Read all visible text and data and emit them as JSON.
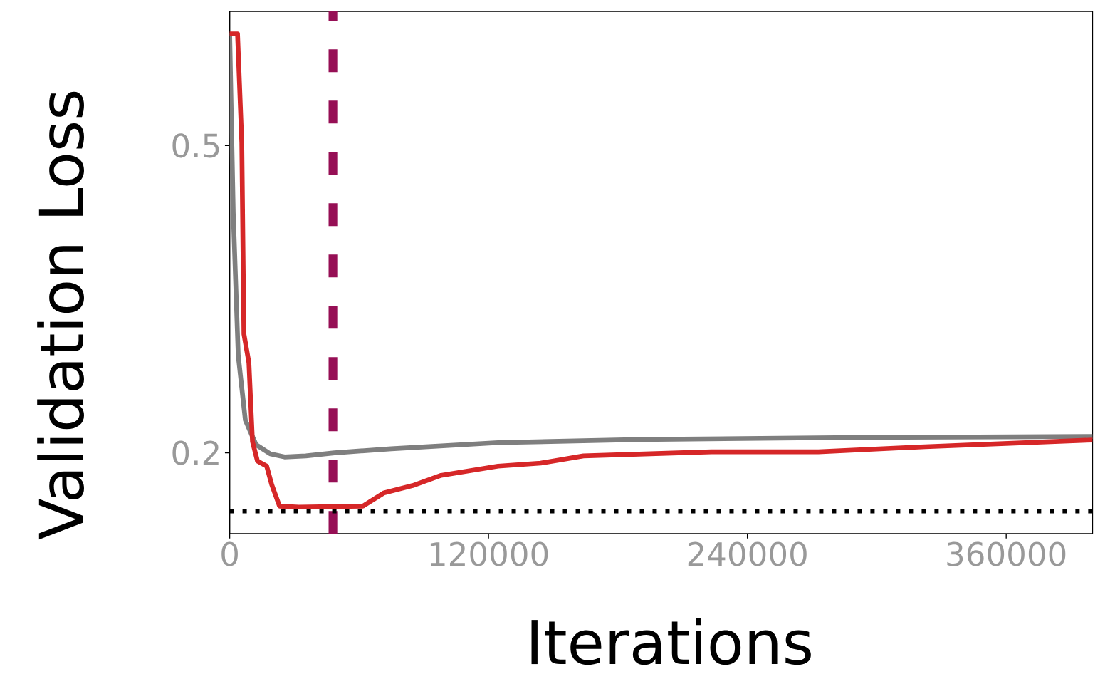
{
  "chart_data": {
    "type": "line",
    "xlabel": "Iterations",
    "ylabel": "Validation Loss",
    "xlim": [
      0,
      400000
    ],
    "ylim": [
      0.121,
      0.631
    ],
    "xticks": [
      0,
      120000,
      240000,
      360000
    ],
    "yticks": [
      0.2,
      0.5
    ],
    "marker": "none",
    "line_style": "solid",
    "series": [
      {
        "color": "#7f7f7f",
        "x": [
          0,
          1650,
          3960,
          7260,
          12210,
          18810,
          25410,
          35310,
          48510,
          74910,
          124410,
          190410,
          289410,
          400000
        ],
        "values": [
          0.608,
          0.434,
          0.295,
          0.232,
          0.208,
          0.199,
          0.196,
          0.197,
          0.2,
          0.204,
          0.21,
          0.213,
          0.215,
          0.216
        ]
      },
      {
        "color": "#d62728",
        "x": [
          0,
          3630,
          5610,
          6600,
          8910,
          10560,
          12870,
          17160,
          19470,
          23100,
          32010,
          61710,
          71610,
          84810,
          98010,
          124410,
          144210,
          164010,
          223410,
          272910,
          322410,
          400000
        ],
        "values": [
          0.609,
          0.609,
          0.503,
          0.316,
          0.288,
          0.211,
          0.192,
          0.187,
          0.169,
          0.148,
          0.147,
          0.148,
          0.161,
          0.168,
          0.178,
          0.187,
          0.19,
          0.197,
          0.201,
          0.201,
          0.206,
          0.2125
        ]
      }
    ],
    "ref_lines": [
      {
        "axis": "x",
        "value": 48000,
        "color": "#960f55",
        "line_style": "dashed"
      },
      {
        "axis": "y",
        "value": 0.143,
        "color": "#000000",
        "line_style": "dotted"
      }
    ]
  }
}
